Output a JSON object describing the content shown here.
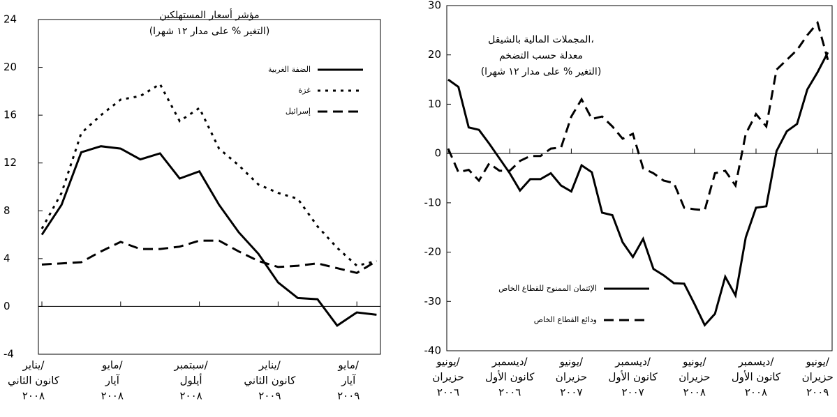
{
  "chart_data": [
    {
      "type": "line",
      "title": [
        "مؤشر أسعار المستهلكين"
      ],
      "subtitle": "(التغير % على مدار ١٢ شهرا)",
      "categories": [
        [
          "يناير/",
          "كانون الثاني",
          "٢٠٠٨"
        ],
        null,
        null,
        null,
        [
          "مايو/",
          "آيار",
          "٢٠٠٨"
        ],
        null,
        null,
        null,
        [
          "سبتمبر/",
          "أيلول",
          "٢٠٠٨"
        ],
        null,
        null,
        null,
        [
          "يناير/",
          "كانون الثاني",
          "٢٠٠٩"
        ],
        null,
        null,
        null,
        [
          "مايو/",
          "آيار",
          "٢٠٠٩"
        ],
        null
      ],
      "series": [
        {
          "name": "الضفة الغربية",
          "color": "#000000",
          "dash": "solid",
          "values": [
            6.0,
            8.5,
            12.9,
            13.4,
            13.2,
            12.3,
            12.8,
            10.7,
            11.3,
            8.5,
            6.2,
            4.4,
            2.0,
            0.7,
            0.6,
            -1.6,
            -0.5,
            -0.7
          ]
        },
        {
          "name": "غزة",
          "color": "#000000",
          "dash": "dotted",
          "values": [
            6.5,
            9.5,
            14.5,
            16.0,
            17.3,
            17.6,
            18.6,
            15.5,
            16.6,
            13.2,
            11.8,
            10.2,
            9.5,
            9.0,
            6.7,
            4.9,
            3.4,
            3.8
          ]
        },
        {
          "name": "إسرائيل",
          "color": "#000000",
          "dash": "dashed",
          "values": [
            3.5,
            3.6,
            3.7,
            4.6,
            5.4,
            4.8,
            4.8,
            5.0,
            5.5,
            5.5,
            4.6,
            3.8,
            3.3,
            3.4,
            3.6,
            3.2,
            2.8,
            3.8
          ]
        }
      ],
      "ylim": [
        -4,
        24
      ],
      "yticks": [
        -4,
        0,
        4,
        8,
        12,
        16,
        20,
        24
      ]
    },
    {
      "type": "line",
      "title": [
        "المجملات المالية بالشيقل،",
        "معدلة حسب التضخم"
      ],
      "subtitle": "(التغير % على مدار ١٢ شهرا)",
      "categories": [
        [
          "يونيو/",
          "حزيران",
          "٢٠٠٦"
        ],
        null,
        null,
        null,
        null,
        null,
        [
          "ديسمبر/",
          "كانون الأول",
          "٢٠٠٦"
        ],
        null,
        null,
        null,
        null,
        null,
        [
          "يونيو/",
          "حزيران",
          "٢٠٠٧"
        ],
        null,
        null,
        null,
        null,
        null,
        [
          "ديسمبر/",
          "كانون الأول",
          "٢٠٠٧"
        ],
        null,
        null,
        null,
        null,
        null,
        [
          "يونيو/",
          "حزيران",
          "٢٠٠٨"
        ],
        null,
        null,
        null,
        null,
        null,
        [
          "ديسمبر/",
          "كانون الأول",
          "٢٠٠٨"
        ],
        null,
        null,
        null,
        null,
        null,
        [
          "يونيو/",
          "حزيران",
          "٢٠٠٩"
        ],
        null
      ],
      "series": [
        {
          "name": "الإئتمان الممنوح للقطاع الخاص",
          "color": "#000000",
          "dash": "solid",
          "values": [
            15,
            13.5,
            5.3,
            4.8,
            2,
            -1,
            -4,
            -7.5,
            -5.2,
            -5.2,
            -4,
            -6.5,
            -7.7,
            -2.4,
            -3.8,
            -12,
            -12.5,
            -18,
            -21,
            -17.3,
            -23.4,
            -24.7,
            -26.3,
            -26.4,
            -30.5,
            -34.8,
            -32.5,
            -25,
            -28.8,
            -17,
            -11,
            -10.7,
            0.5,
            4.5,
            6,
            13,
            16.5,
            20.5
          ]
        },
        {
          "name": "ودائع القطاع الخاص",
          "color": "#000000",
          "dash": "dashed",
          "values": [
            1,
            -3.8,
            -3.3,
            -5.5,
            -2,
            -3.5,
            -3.5,
            -1.5,
            -0.5,
            -0.5,
            1,
            1.2,
            7.5,
            11,
            7,
            7.5,
            5.5,
            3,
            4,
            -3,
            -4,
            -5.5,
            -6,
            -11,
            -11.3,
            -11.5,
            -4,
            -3.5,
            -6.5,
            4,
            8,
            5.5,
            17,
            19,
            21,
            24,
            26.5,
            19
          ]
        }
      ],
      "ylim": [
        -40,
        30
      ],
      "yticks": [
        -40,
        -30,
        -20,
        -10,
        0,
        10,
        20,
        30
      ]
    }
  ]
}
